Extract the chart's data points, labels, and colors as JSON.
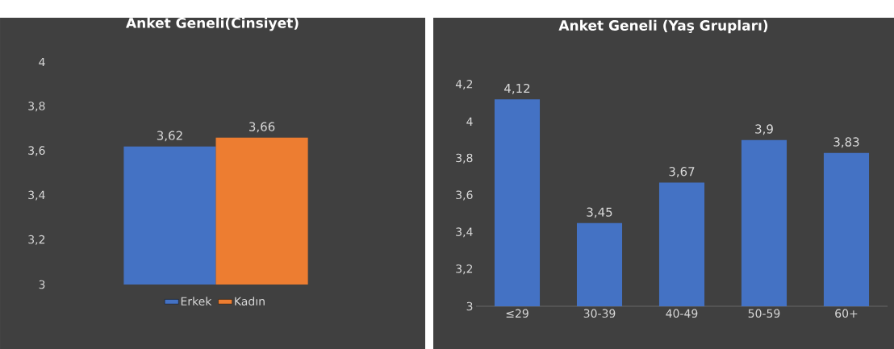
{
  "chart_data": [
    {
      "type": "bar",
      "title": "Anket Geneli(Cinsiyet)",
      "categories": [
        null
      ],
      "series": [
        {
          "name": "Erkek",
          "color": "#4472c4",
          "values": [
            3.62
          ],
          "value_labels": [
            "3,62"
          ]
        },
        {
          "name": "Kadın",
          "color": "#ed7d31",
          "values": [
            3.66
          ],
          "value_labels": [
            "3,66"
          ]
        }
      ],
      "ylim": [
        3,
        4
      ],
      "yticks": [
        3,
        {
          "value": 3.2,
          "label": "3,2"
        },
        {
          "value": 3.4,
          "label": "3,4"
        },
        {
          "value": 3.6,
          "label": "3,6"
        },
        {
          "value": 3.8,
          "label": "3,8"
        },
        4
      ],
      "legend": "bottom"
    },
    {
      "type": "bar",
      "title": "Anket Geneli (Yaş Grupları)",
      "categories": [
        "≤29",
        "30-39",
        "40-49",
        "50-59",
        "60+"
      ],
      "values": [
        4.12,
        3.45,
        3.67,
        3.9,
        3.83
      ],
      "color": "#4472c4",
      "value_labels": [
        "4,12",
        "3,45",
        "3,67",
        "3,9",
        "3,83"
      ],
      "ylim": [
        3,
        4.2
      ],
      "yticks": [
        3,
        {
          "value": 3.2,
          "label": "3,2"
        },
        {
          "value": 3.4,
          "label": "3,4"
        },
        {
          "value": 3.6,
          "label": "3,6"
        },
        {
          "value": 3.8,
          "label": "3,8"
        },
        4,
        {
          "value": 4.2,
          "label": "4,2"
        }
      ]
    }
  ]
}
